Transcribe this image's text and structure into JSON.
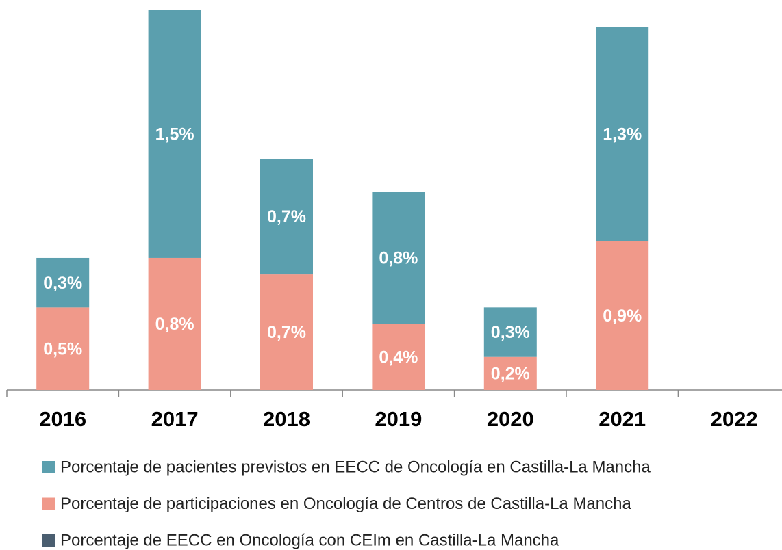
{
  "chart_data": {
    "type": "bar",
    "stacked": true,
    "categories": [
      "2016",
      "2017",
      "2018",
      "2019",
      "2020",
      "2021",
      "2022"
    ],
    "series": [
      {
        "name": "Porcentaje de participaciones en Oncología de Centros de Castilla-La Mancha",
        "color": "#f0998a",
        "values": [
          0.5,
          0.8,
          0.7,
          0.4,
          0.2,
          0.9,
          null
        ],
        "value_labels": [
          "0,5%",
          "0,8%",
          "0,7%",
          "0,4%",
          "0,2%",
          "0,9%",
          null
        ]
      },
      {
        "name": "Porcentaje de pacientes previstos en EECC de Oncología en Castilla-La Mancha",
        "color": "#5b9fae",
        "values": [
          0.3,
          1.5,
          0.7,
          0.8,
          0.3,
          1.3,
          null
        ],
        "value_labels": [
          "0,3%",
          "1,5%",
          "0,7%",
          "0,8%",
          "0,3%",
          "1,3%",
          null
        ]
      },
      {
        "name": "Porcentaje de EECC en Oncología con CEIm en Castilla-La Mancha",
        "color": "#4a5e70",
        "values": [
          null,
          null,
          null,
          null,
          null,
          null,
          null
        ]
      }
    ],
    "legend_order": [
      1,
      0,
      2
    ],
    "ylim": [
      0,
      2.3
    ]
  }
}
